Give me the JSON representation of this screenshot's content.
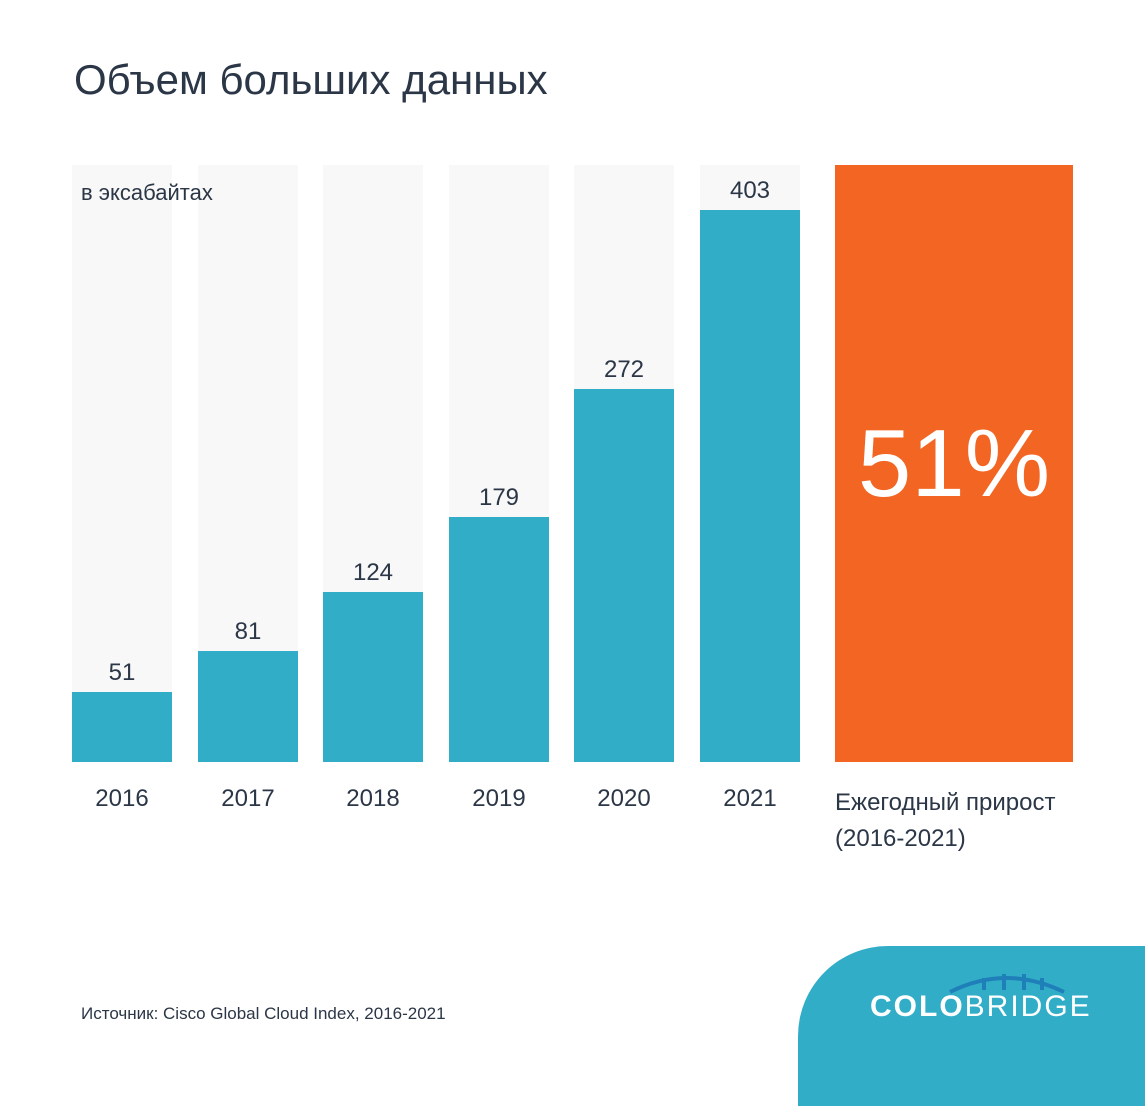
{
  "title": "Объем больших данных",
  "source": "Источник: Cisco Global Cloud Index, 2016-2021",
  "logo": {
    "bold": "COLO",
    "light": "BRIDGE"
  },
  "colors": {
    "bar": "#32adc8",
    "growth": "#f26522",
    "column_bg": "#f8f8f8",
    "logo_bg": "#32adc8"
  },
  "chart_data": {
    "type": "bar",
    "unit_label": "в эксабайтах",
    "categories": [
      "2016",
      "2017",
      "2018",
      "2019",
      "2020",
      "2021"
    ],
    "values": [
      51,
      81,
      124,
      179,
      272,
      403
    ],
    "growth": {
      "value": "51%",
      "label_line1": "Ежегодный прирост",
      "label_line2": "(2016-2021)"
    }
  }
}
